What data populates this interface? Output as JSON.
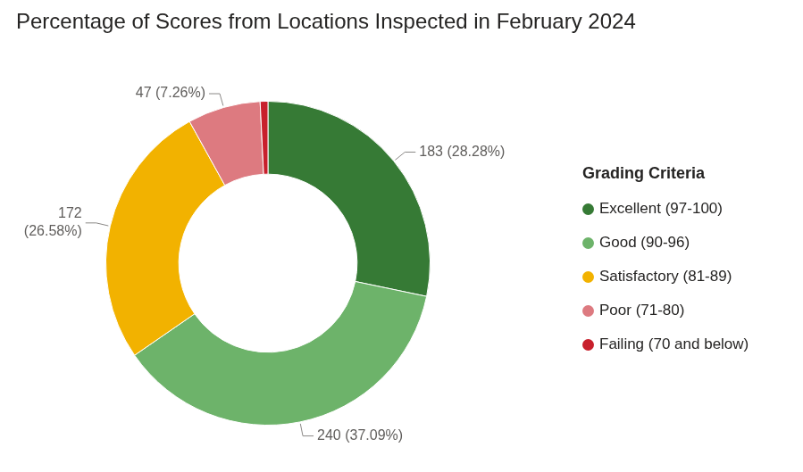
{
  "chart_data": {
    "type": "doughnut",
    "title": "Percentage of Scores from Locations Inspected in February 2024",
    "categories": [
      "Excellent (97-100)",
      "Good (90-96)",
      "Satisfactory (81-89)",
      "Poor (71-80)",
      "Failing (70 and below)"
    ],
    "values": [
      183,
      240,
      172,
      47,
      5
    ],
    "value_labels": [
      "183 (28.28%)",
      "240 (37.09%)",
      "172 (26.58%)",
      "47 (7.26%)",
      null
    ],
    "colors": [
      "#367a35",
      "#6db36a",
      "#f2b200",
      "#dd7a80",
      "#c8202c"
    ],
    "data_labels": true,
    "legend": "right",
    "legend_title": "Grading Criteria"
  }
}
